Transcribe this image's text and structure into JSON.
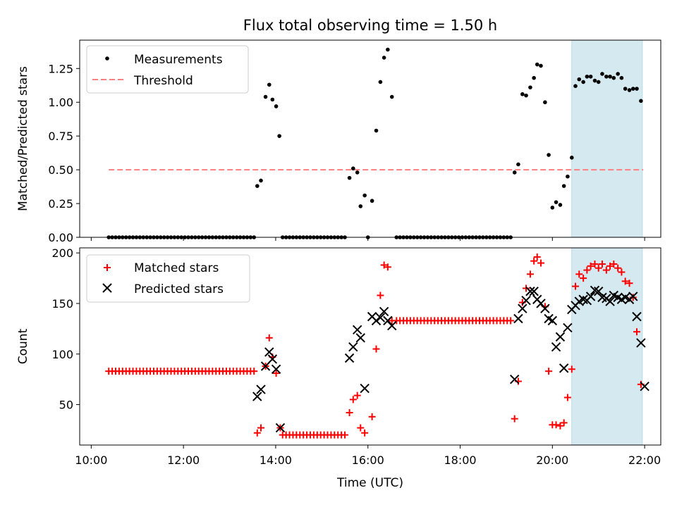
{
  "chart_data": [
    {
      "type": "scatter",
      "title": "Flux total observing time = 1.50 h",
      "ylabel": "Matched/Predicted stars",
      "xlabel": "",
      "xlim": [
        9.75,
        22.35
      ],
      "ylim": [
        0,
        1.46
      ],
      "x_ticks": [
        10,
        12,
        14,
        16,
        18,
        20,
        22
      ],
      "y_ticks": [
        0.0,
        0.25,
        0.5,
        0.75,
        1.0,
        1.25
      ],
      "y_tick_labels": [
        "0.00",
        "0.25",
        "0.50",
        "0.75",
        "1.00",
        "1.25"
      ],
      "grid": false,
      "legend_position": "top-left",
      "legend": [
        "Measurements",
        "Threshold"
      ],
      "highlight_span": {
        "x_start": 20.42,
        "x_end": 21.95,
        "color": "#d4e9f0"
      },
      "threshold": {
        "name": "Threshold",
        "value": 0.5,
        "x_start": 10.38,
        "x_end": 21.97,
        "color": "#ff7f7f"
      },
      "series": [
        {
          "name": "Measurements",
          "color": "#000000",
          "zeros_from_to": [
            [
              10.38,
              13.55
            ],
            [
              14.15,
              15.57
            ],
            [
              16.62,
              19.15
            ]
          ],
          "zero_step": 0.075,
          "points": [
            [
              16.0,
              0.0
            ],
            [
              13.6,
              0.38
            ],
            [
              13.68,
              0.42
            ],
            [
              13.78,
              1.04
            ],
            [
              13.86,
              1.13
            ],
            [
              13.93,
              1.02
            ],
            [
              14.01,
              0.97
            ],
            [
              14.08,
              0.75
            ],
            [
              15.6,
              0.44
            ],
            [
              15.68,
              0.51
            ],
            [
              15.77,
              0.48
            ],
            [
              15.84,
              0.23
            ],
            [
              15.93,
              0.31
            ],
            [
              16.09,
              0.27
            ],
            [
              16.18,
              0.79
            ],
            [
              16.27,
              1.15
            ],
            [
              16.35,
              1.33
            ],
            [
              16.43,
              1.39
            ],
            [
              16.52,
              1.04
            ],
            [
              19.18,
              0.48
            ],
            [
              19.26,
              0.54
            ],
            [
              19.35,
              1.06
            ],
            [
              19.43,
              1.05
            ],
            [
              19.52,
              1.11
            ],
            [
              19.6,
              1.18
            ],
            [
              19.67,
              1.28
            ],
            [
              19.75,
              1.27
            ],
            [
              19.84,
              1.0
            ],
            [
              19.92,
              0.61
            ],
            [
              20.0,
              0.22
            ],
            [
              20.08,
              0.26
            ],
            [
              20.17,
              0.24
            ],
            [
              20.25,
              0.38
            ],
            [
              20.33,
              0.45
            ],
            [
              20.42,
              0.59
            ],
            [
              20.5,
              1.12
            ],
            [
              20.58,
              1.17
            ],
            [
              20.67,
              1.15
            ],
            [
              20.75,
              1.19
            ],
            [
              20.83,
              1.19
            ],
            [
              20.92,
              1.16
            ],
            [
              21.0,
              1.15
            ],
            [
              21.08,
              1.21
            ],
            [
              21.17,
              1.19
            ],
            [
              21.25,
              1.19
            ],
            [
              21.33,
              1.18
            ],
            [
              21.42,
              1.21
            ],
            [
              21.5,
              1.18
            ],
            [
              21.58,
              1.1
            ],
            [
              21.67,
              1.09
            ],
            [
              21.75,
              1.1
            ],
            [
              21.83,
              1.1
            ],
            [
              21.92,
              1.01
            ]
          ]
        }
      ]
    },
    {
      "type": "scatter",
      "title": "",
      "ylabel": "Count",
      "xlabel": "Time (UTC)",
      "xlim": [
        9.75,
        22.35
      ],
      "ylim": [
        10,
        205
      ],
      "x_ticks": [
        10,
        12,
        14,
        16,
        18,
        20,
        22
      ],
      "x_tick_labels": [
        "10:00",
        "12:00",
        "14:00",
        "16:00",
        "18:00",
        "20:00",
        "22:00"
      ],
      "y_ticks": [
        50,
        100,
        150,
        200
      ],
      "y_tick_labels": [
        "50",
        "100",
        "150",
        "200"
      ],
      "grid": false,
      "legend_position": "top-left",
      "legend": [
        "Matched stars",
        "Predicted stars"
      ],
      "highlight_span": {
        "x_start": 20.42,
        "x_end": 21.95,
        "color": "#d4e9f0"
      },
      "series": [
        {
          "name": "Matched stars",
          "marker": "plus",
          "color": "#ff0000",
          "flat_runs": [
            {
              "from": 10.38,
              "to": 13.55,
              "step": 0.075,
              "value": 83
            },
            {
              "from": 14.15,
              "to": 15.57,
              "step": 0.075,
              "value": 20
            },
            {
              "from": 16.62,
              "to": 19.15,
              "step": 0.075,
              "value": 133
            }
          ],
          "points": [
            [
              13.6,
              22
            ],
            [
              13.68,
              27
            ],
            [
              13.78,
              88
            ],
            [
              13.86,
              116
            ],
            [
              13.93,
              97
            ],
            [
              14.01,
              81
            ],
            [
              14.1,
              27
            ],
            [
              15.6,
              42
            ],
            [
              15.68,
              55
            ],
            [
              15.77,
              59
            ],
            [
              15.84,
              27
            ],
            [
              15.93,
              22
            ],
            [
              16.09,
              38
            ],
            [
              16.18,
              105
            ],
            [
              16.27,
              158
            ],
            [
              16.35,
              188
            ],
            [
              16.43,
              186
            ],
            [
              16.52,
              133
            ],
            [
              19.18,
              36
            ],
            [
              19.26,
              73
            ],
            [
              19.35,
              151
            ],
            [
              19.43,
              165
            ],
            [
              19.52,
              179
            ],
            [
              19.6,
              192
            ],
            [
              19.67,
              196
            ],
            [
              19.75,
              190
            ],
            [
              19.84,
              147
            ],
            [
              19.92,
              83
            ],
            [
              20.0,
              30
            ],
            [
              20.08,
              30
            ],
            [
              20.17,
              29
            ],
            [
              20.25,
              32
            ],
            [
              20.33,
              57
            ],
            [
              20.42,
              85
            ],
            [
              20.5,
              167
            ],
            [
              20.58,
              179
            ],
            [
              20.67,
              175
            ],
            [
              20.75,
              183
            ],
            [
              20.83,
              187
            ],
            [
              20.92,
              189
            ],
            [
              21.0,
              185
            ],
            [
              21.08,
              189
            ],
            [
              21.17,
              183
            ],
            [
              21.25,
              187
            ],
            [
              21.33,
              189
            ],
            [
              21.42,
              185
            ],
            [
              21.5,
              181
            ],
            [
              21.58,
              172
            ],
            [
              21.67,
              170
            ],
            [
              21.75,
              156
            ],
            [
              21.83,
              122
            ],
            [
              21.92,
              70
            ]
          ]
        },
        {
          "name": "Predicted stars",
          "marker": "x",
          "color": "#000000",
          "points": [
            [
              13.6,
              58
            ],
            [
              13.68,
              65
            ],
            [
              13.78,
              88
            ],
            [
              13.86,
              102
            ],
            [
              13.93,
              95
            ],
            [
              14.01,
              85
            ],
            [
              14.1,
              27
            ],
            [
              15.6,
              96
            ],
            [
              15.68,
              107
            ],
            [
              15.77,
              124
            ],
            [
              15.84,
              116
            ],
            [
              15.93,
              66
            ],
            [
              16.09,
              137
            ],
            [
              16.18,
              133
            ],
            [
              16.27,
              136
            ],
            [
              16.35,
              142
            ],
            [
              16.43,
              133
            ],
            [
              16.52,
              128
            ],
            [
              19.18,
              75
            ],
            [
              19.26,
              135
            ],
            [
              19.35,
              145
            ],
            [
              19.43,
              153
            ],
            [
              19.52,
              162
            ],
            [
              19.6,
              162
            ],
            [
              19.67,
              154
            ],
            [
              19.75,
              150
            ],
            [
              19.84,
              145
            ],
            [
              19.92,
              135
            ],
            [
              20.0,
              133
            ],
            [
              20.08,
              107
            ],
            [
              20.17,
              117
            ],
            [
              20.25,
              86
            ],
            [
              20.33,
              126
            ],
            [
              20.42,
              144
            ],
            [
              20.5,
              148
            ],
            [
              20.58,
              152
            ],
            [
              20.67,
              154
            ],
            [
              20.75,
              153
            ],
            [
              20.83,
              157
            ],
            [
              20.92,
              163
            ],
            [
              21.0,
              162
            ],
            [
              21.08,
              156
            ],
            [
              21.17,
              155
            ],
            [
              21.25,
              152
            ],
            [
              21.33,
              158
            ],
            [
              21.42,
              156
            ],
            [
              21.5,
              154
            ],
            [
              21.58,
              156
            ],
            [
              21.67,
              154
            ],
            [
              21.75,
              157
            ],
            [
              21.83,
              137
            ],
            [
              21.92,
              111
            ],
            [
              22.0,
              68
            ]
          ]
        }
      ]
    }
  ]
}
